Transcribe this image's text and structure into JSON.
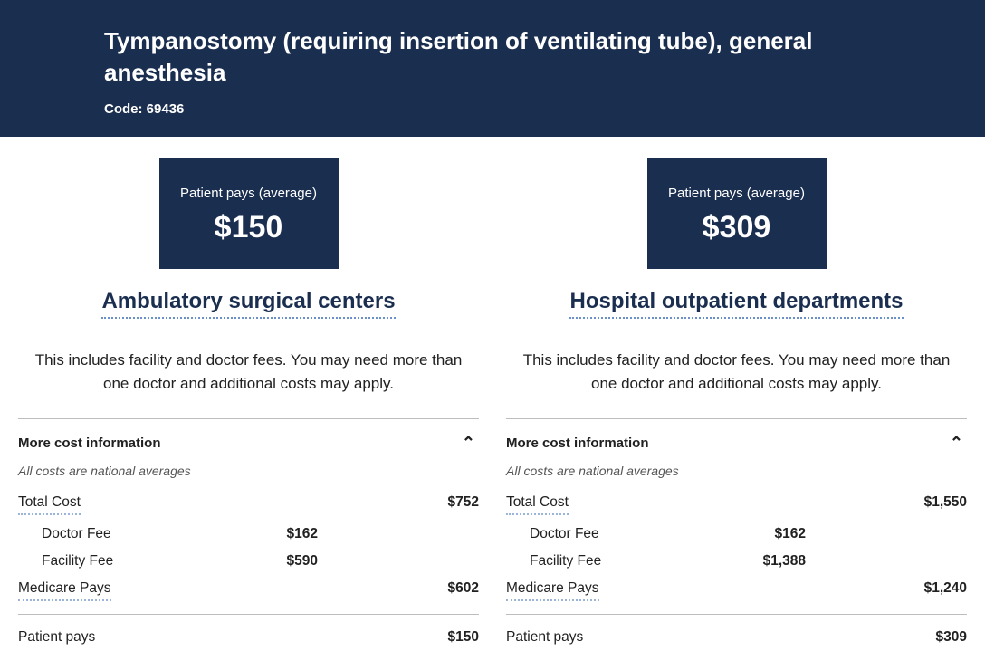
{
  "colors": {
    "banner_bg": "#1a2e4f",
    "banner_text": "#ffffff",
    "heading": "#1a2e4f",
    "dotted_underline": "#6b8fc9",
    "divider": "#bdbdbd",
    "body_text": "#212121",
    "muted_text": "#555555"
  },
  "header": {
    "title": "Tympanostomy (requiring insertion of ventilating tube), general anesthesia",
    "code_label": "Code: 69436"
  },
  "common": {
    "pay_label": "Patient pays (average)",
    "description": "This includes facility and doctor fees. You may need more than one doctor and additional costs may apply.",
    "more_label": "More cost information",
    "averages_note": "All costs are national averages",
    "rows": {
      "total": "Total Cost",
      "doctor": "Doctor Fee",
      "facility": "Facility Fee",
      "medicare": "Medicare Pays",
      "patient": "Patient pays"
    }
  },
  "left": {
    "pay_amount": "$150",
    "heading": "Ambulatory surgical centers",
    "total": "$752",
    "doctor": "$162",
    "facility": "$590",
    "medicare": "$602",
    "patient": "$150"
  },
  "right": {
    "pay_amount": "$309",
    "heading": "Hospital outpatient departments",
    "total": "$1,550",
    "doctor": "$162",
    "facility": "$1,388",
    "medicare": "$1,240",
    "patient": "$309"
  }
}
